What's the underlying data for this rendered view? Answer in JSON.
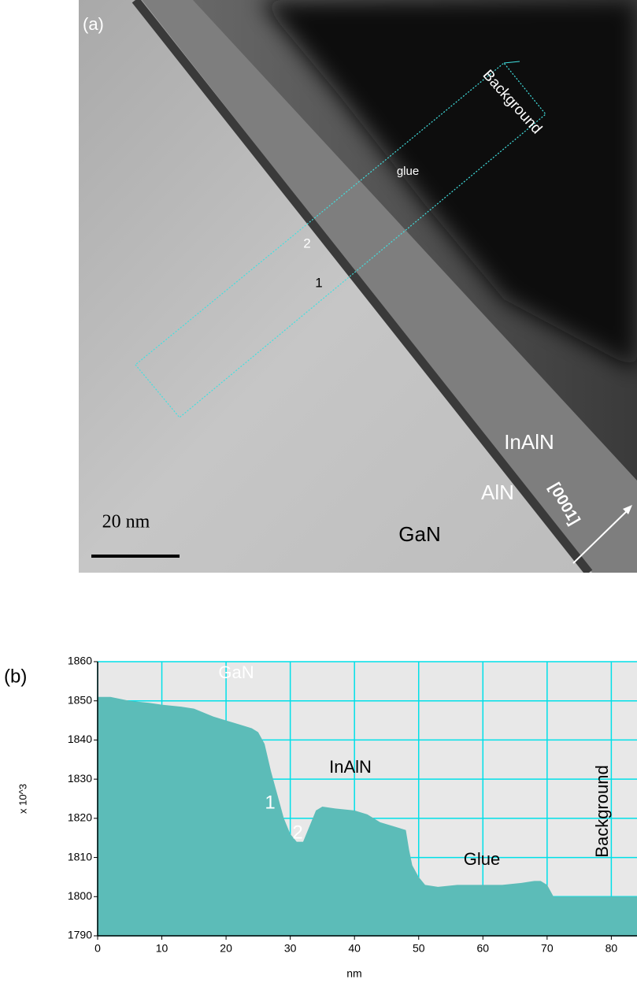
{
  "image_panel": {
    "label": "(a)",
    "region_labels": [
      "Background",
      "glue",
      "2",
      "1",
      "InAlN",
      "AlN",
      "GaN"
    ],
    "direction": "[0001]",
    "scale_bar": "20 nm"
  },
  "chart_data": {
    "type": "area",
    "panel_label": "(b)",
    "x_label": "nm",
    "y_label": "x 10^3",
    "color": "#5cbcb8",
    "grid": true,
    "grid_color": "#00e0e8",
    "x": [
      0,
      2,
      5,
      8,
      10,
      13,
      15,
      18,
      20,
      22,
      24,
      25,
      26,
      27,
      28,
      29,
      30,
      31,
      32,
      33,
      34,
      35,
      37,
      40,
      42,
      44,
      46,
      48,
      48.5,
      49,
      50,
      51,
      53,
      56,
      60,
      63,
      66,
      68,
      69,
      70,
      71,
      74,
      80,
      84
    ],
    "values": [
      1851,
      1851,
      1850,
      1849.5,
      1849,
      1848.5,
      1848,
      1846,
      1845,
      1844,
      1843,
      1842,
      1839,
      1832,
      1826,
      1820,
      1816,
      1814,
      1814,
      1818,
      1822,
      1823,
      1822.5,
      1822,
      1821,
      1819,
      1818,
      1817,
      1812,
      1808,
      1805,
      1803,
      1802.5,
      1803,
      1803,
      1803,
      1803.5,
      1804,
      1804,
      1803,
      1800,
      1800,
      1800,
      1800
    ],
    "xlim": [
      0,
      84
    ],
    "xticks": [
      0,
      10,
      20,
      30,
      40,
      50,
      60,
      70,
      80
    ],
    "ylim": [
      1790,
      1860
    ],
    "yticks": [
      1790,
      1800,
      1810,
      1820,
      1830,
      1840,
      1850,
      1860
    ],
    "annotations": [
      "GaN",
      "1",
      "InAlN",
      "2",
      "Glue",
      "Background"
    ]
  }
}
